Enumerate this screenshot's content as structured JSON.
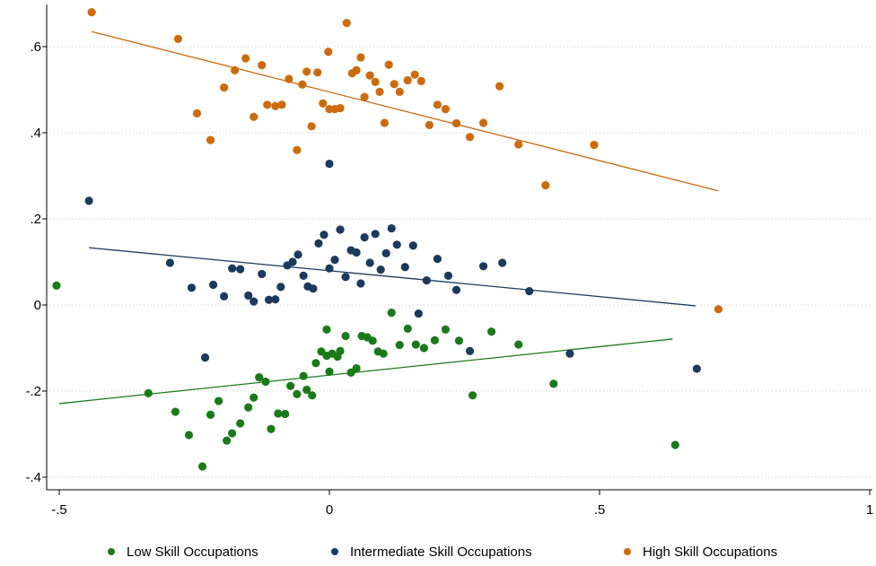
{
  "chart_data": {
    "type": "scatter",
    "title": "",
    "xlabel": "",
    "ylabel": "",
    "xlim": [
      -0.51,
      1.0
    ],
    "ylim": [
      -0.4,
      0.7
    ],
    "xticks": [
      -0.5,
      0,
      0.5,
      1
    ],
    "xtick_labels": [
      "-.5",
      "0",
      ".5",
      "1"
    ],
    "yticks": [
      -0.4,
      -0.2,
      0,
      0.2,
      0.4,
      0.6
    ],
    "ytick_labels": [
      "-.4",
      "-.2",
      "0",
      ".2",
      ".4",
      ".6"
    ],
    "grid": "horizontal dotted",
    "legend_position": "bottom",
    "series": [
      {
        "name": "Low Skill Occupations",
        "color": "#1a7a1a",
        "fit_line": {
          "x": [
            -0.5,
            0.635
          ],
          "y": [
            -0.229,
            -0.079
          ]
        },
        "points": [
          [
            -0.505,
            0.045
          ],
          [
            -0.335,
            -0.205
          ],
          [
            -0.285,
            -0.248
          ],
          [
            -0.26,
            -0.302
          ],
          [
            -0.235,
            -0.375
          ],
          [
            -0.22,
            -0.255
          ],
          [
            -0.205,
            -0.223
          ],
          [
            -0.19,
            -0.315
          ],
          [
            -0.18,
            -0.298
          ],
          [
            -0.165,
            -0.275
          ],
          [
            -0.15,
            -0.238
          ],
          [
            -0.14,
            -0.215
          ],
          [
            -0.13,
            -0.168
          ],
          [
            -0.118,
            -0.178
          ],
          [
            -0.108,
            -0.288
          ],
          [
            -0.095,
            -0.252
          ],
          [
            -0.082,
            -0.253
          ],
          [
            -0.072,
            -0.188
          ],
          [
            -0.06,
            -0.207
          ],
          [
            -0.048,
            -0.165
          ],
          [
            -0.042,
            -0.197
          ],
          [
            -0.032,
            -0.21
          ],
          [
            -0.025,
            -0.135
          ],
          [
            -0.015,
            -0.108
          ],
          [
            -0.005,
            -0.057
          ],
          [
            -0.005,
            -0.118
          ],
          [
            0.0,
            -0.155
          ],
          [
            0.005,
            -0.113
          ],
          [
            0.015,
            -0.12
          ],
          [
            0.02,
            -0.107
          ],
          [
            0.03,
            -0.072
          ],
          [
            0.04,
            -0.157
          ],
          [
            0.05,
            -0.147
          ],
          [
            0.06,
            -0.072
          ],
          [
            0.07,
            -0.075
          ],
          [
            0.08,
            -0.083
          ],
          [
            0.09,
            -0.108
          ],
          [
            0.1,
            -0.113
          ],
          [
            0.115,
            -0.018
          ],
          [
            0.13,
            -0.093
          ],
          [
            0.145,
            -0.055
          ],
          [
            0.16,
            -0.092
          ],
          [
            0.175,
            -0.1
          ],
          [
            0.195,
            -0.082
          ],
          [
            0.215,
            -0.057
          ],
          [
            0.24,
            -0.083
          ],
          [
            0.265,
            -0.21
          ],
          [
            0.3,
            -0.062
          ],
          [
            0.35,
            -0.092
          ],
          [
            0.415,
            -0.183
          ],
          [
            0.64,
            -0.325
          ]
        ]
      },
      {
        "name": "Intermediate Skill Occupations",
        "color": "#1b3a5c",
        "fit_line": {
          "x": [
            -0.445,
            0.678
          ],
          "y": [
            0.133,
            -0.002
          ]
        },
        "points": [
          [
            -0.445,
            0.242
          ],
          [
            -0.295,
            0.098
          ],
          [
            -0.255,
            0.04
          ],
          [
            -0.23,
            -0.122
          ],
          [
            -0.215,
            0.047
          ],
          [
            -0.195,
            0.02
          ],
          [
            -0.18,
            0.085
          ],
          [
            -0.165,
            0.083
          ],
          [
            -0.15,
            0.022
          ],
          [
            -0.14,
            0.008
          ],
          [
            -0.125,
            0.072
          ],
          [
            -0.112,
            0.012
          ],
          [
            -0.1,
            0.013
          ],
          [
            -0.09,
            0.042
          ],
          [
            -0.078,
            0.092
          ],
          [
            -0.068,
            0.1
          ],
          [
            -0.058,
            0.117
          ],
          [
            -0.048,
            0.068
          ],
          [
            -0.04,
            0.043
          ],
          [
            -0.03,
            0.038
          ],
          [
            -0.02,
            0.143
          ],
          [
            -0.01,
            0.163
          ],
          [
            0.0,
            0.328
          ],
          [
            0.0,
            0.085
          ],
          [
            0.01,
            0.105
          ],
          [
            0.02,
            0.175
          ],
          [
            0.03,
            0.065
          ],
          [
            0.04,
            0.127
          ],
          [
            0.05,
            0.122
          ],
          [
            0.058,
            0.05
          ],
          [
            0.065,
            0.157
          ],
          [
            0.075,
            0.098
          ],
          [
            0.085,
            0.165
          ],
          [
            0.095,
            0.082
          ],
          [
            0.105,
            0.12
          ],
          [
            0.115,
            0.178
          ],
          [
            0.125,
            0.14
          ],
          [
            0.14,
            0.088
          ],
          [
            0.155,
            0.138
          ],
          [
            0.165,
            -0.02
          ],
          [
            0.18,
            0.057
          ],
          [
            0.2,
            0.107
          ],
          [
            0.22,
            0.068
          ],
          [
            0.235,
            0.035
          ],
          [
            0.26,
            -0.107
          ],
          [
            0.285,
            0.09
          ],
          [
            0.32,
            0.098
          ],
          [
            0.37,
            0.032
          ],
          [
            0.445,
            -0.113
          ],
          [
            0.68,
            -0.148
          ]
        ]
      },
      {
        "name": "High Skill Occupations",
        "color": "#cc6b0e",
        "fit_line": {
          "x": [
            -0.44,
            0.72
          ],
          "y": [
            0.635,
            0.265
          ]
        },
        "points": [
          [
            -0.44,
            0.68
          ],
          [
            -0.28,
            0.618
          ],
          [
            -0.245,
            0.445
          ],
          [
            -0.22,
            0.383
          ],
          [
            -0.195,
            0.505
          ],
          [
            -0.175,
            0.545
          ],
          [
            -0.155,
            0.573
          ],
          [
            -0.14,
            0.437
          ],
          [
            -0.125,
            0.557
          ],
          [
            -0.115,
            0.465
          ],
          [
            -0.1,
            0.462
          ],
          [
            -0.088,
            0.465
          ],
          [
            -0.075,
            0.525
          ],
          [
            -0.06,
            0.36
          ],
          [
            -0.05,
            0.512
          ],
          [
            -0.042,
            0.542
          ],
          [
            -0.033,
            0.415
          ],
          [
            -0.022,
            0.54
          ],
          [
            -0.012,
            0.468
          ],
          [
            -0.002,
            0.588
          ],
          [
            0.0,
            0.455
          ],
          [
            0.01,
            0.455
          ],
          [
            0.02,
            0.457
          ],
          [
            0.032,
            0.655
          ],
          [
            0.042,
            0.538
          ],
          [
            0.05,
            0.545
          ],
          [
            0.058,
            0.575
          ],
          [
            0.065,
            0.483
          ],
          [
            0.075,
            0.533
          ],
          [
            0.085,
            0.518
          ],
          [
            0.093,
            0.495
          ],
          [
            0.102,
            0.423
          ],
          [
            0.11,
            0.558
          ],
          [
            0.12,
            0.513
          ],
          [
            0.13,
            0.495
          ],
          [
            0.145,
            0.522
          ],
          [
            0.158,
            0.535
          ],
          [
            0.17,
            0.52
          ],
          [
            0.185,
            0.418
          ],
          [
            0.2,
            0.465
          ],
          [
            0.215,
            0.455
          ],
          [
            0.235,
            0.422
          ],
          [
            0.26,
            0.39
          ],
          [
            0.285,
            0.423
          ],
          [
            0.315,
            0.508
          ],
          [
            0.35,
            0.373
          ],
          [
            0.4,
            0.278
          ],
          [
            0.49,
            0.372
          ],
          [
            0.72,
            -0.01
          ]
        ]
      }
    ]
  }
}
